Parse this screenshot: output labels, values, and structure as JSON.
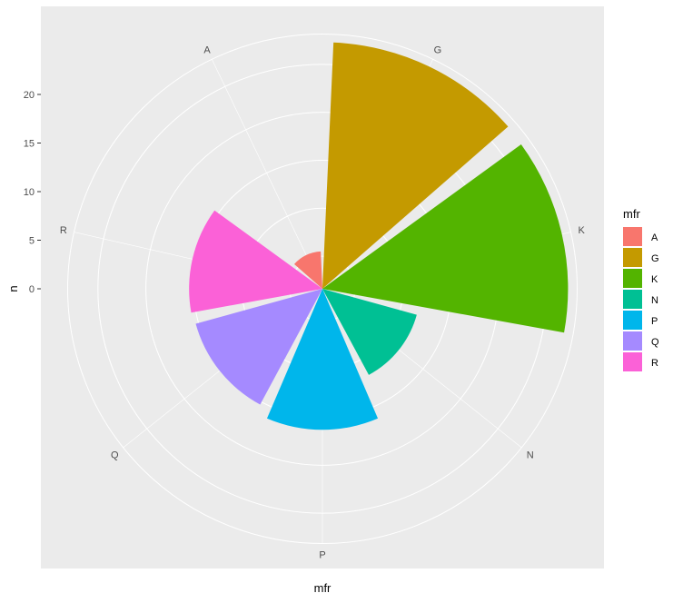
{
  "chart_data": {
    "type": "bar",
    "coord": "polar",
    "categories": [
      "A",
      "G",
      "K",
      "N",
      "P",
      "Q",
      "R"
    ],
    "values": [
      0.5,
      22.3,
      22.2,
      6.8,
      11.3,
      10.3,
      10.5
    ],
    "xlabel": "mfr",
    "ylabel": "n",
    "y_ticks": [
      0,
      5,
      10,
      15,
      20
    ],
    "ylim": [
      -3.4,
      25.0
    ],
    "legend": {
      "title": "mfr",
      "position": "right",
      "entries": [
        "A",
        "G",
        "K",
        "N",
        "P",
        "Q",
        "R"
      ]
    },
    "colors": [
      "#F8766D",
      "#C49A00",
      "#53B400",
      "#00C094",
      "#00B6EB",
      "#A58AFF",
      "#FB61D7"
    ],
    "grid": true
  }
}
